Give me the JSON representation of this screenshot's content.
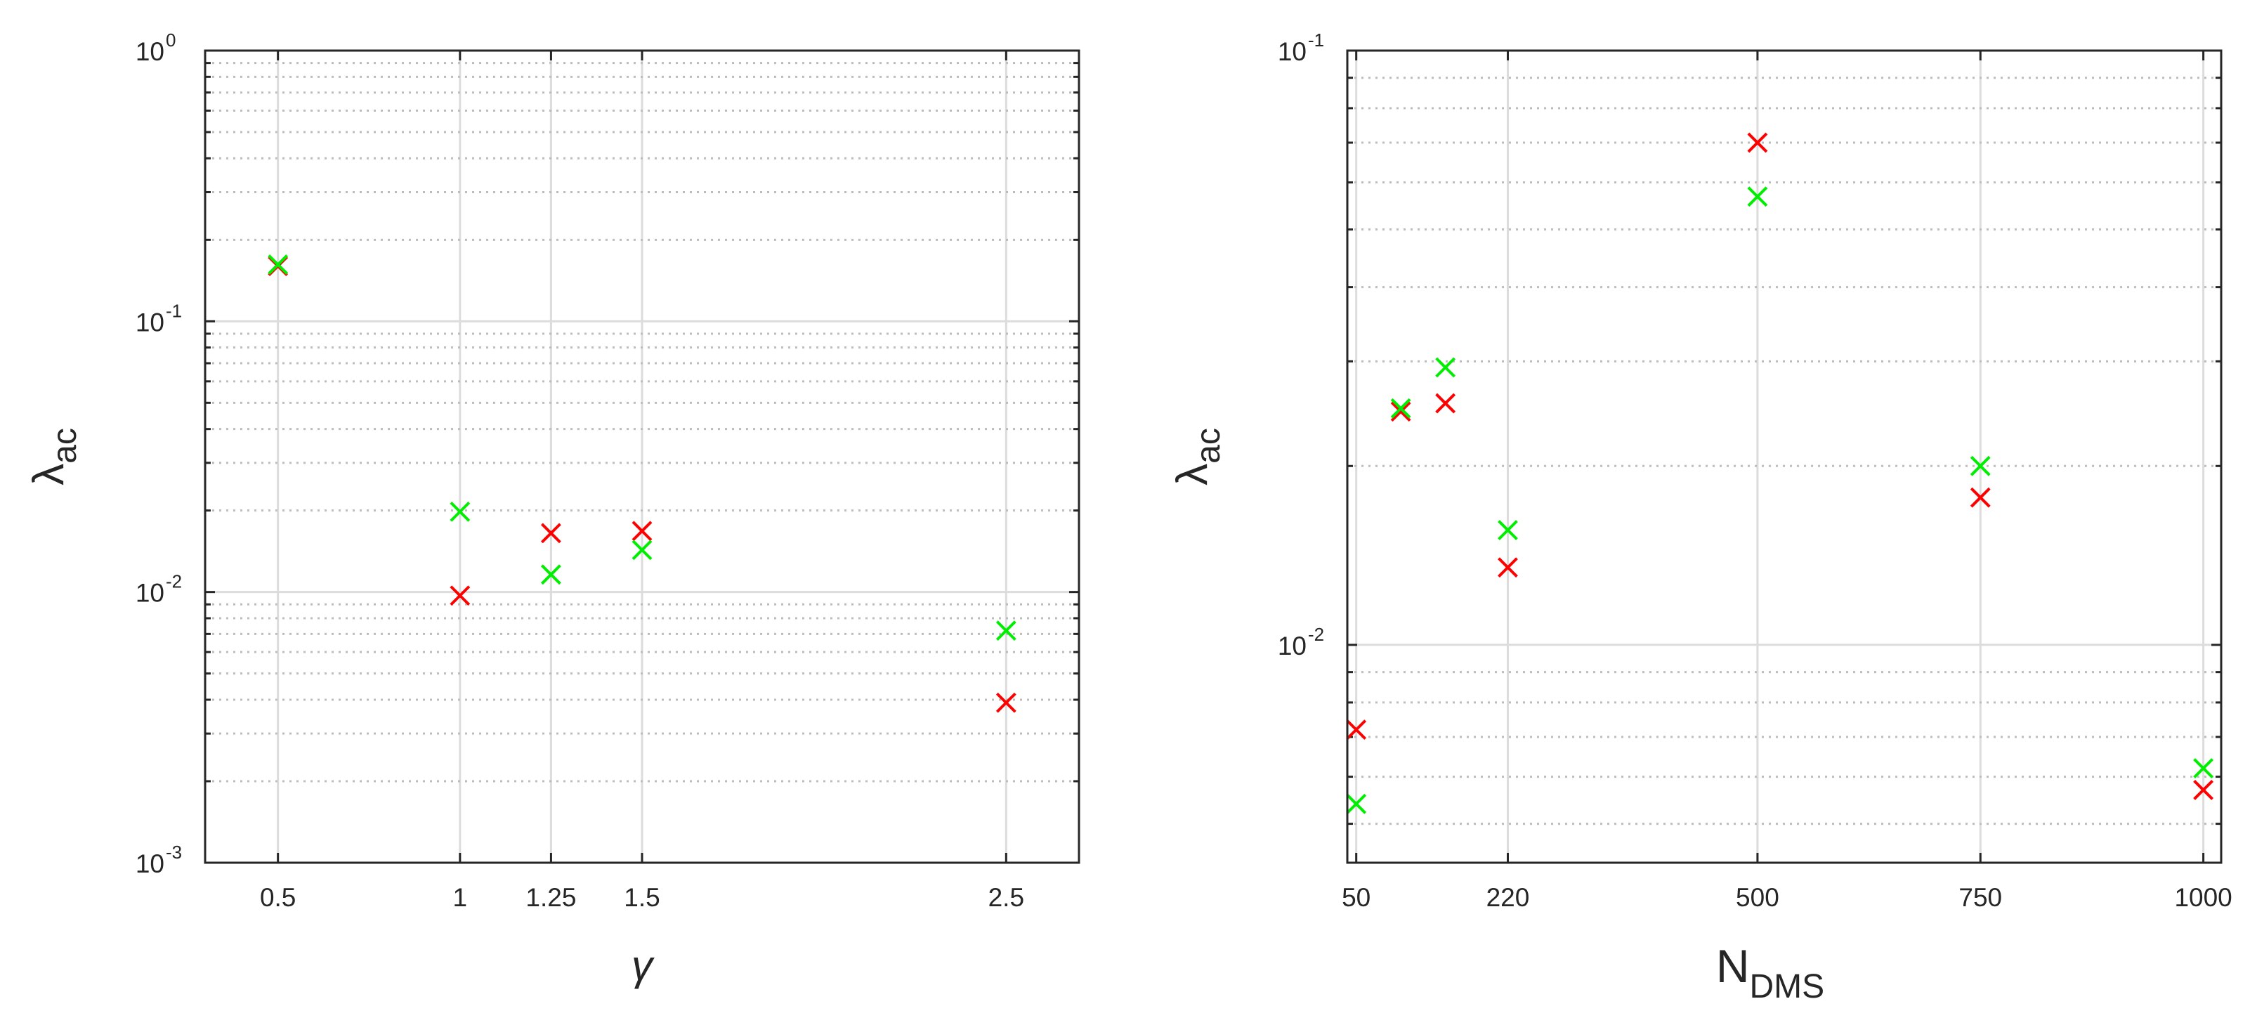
{
  "chart_data": [
    {
      "type": "scatter",
      "title": "",
      "xlabel": "γ",
      "ylabel_main": "λ",
      "ylabel_sub": "ac",
      "yscale": "log",
      "xlim": [
        0.3,
        2.7
      ],
      "ylim": [
        0.001,
        1
      ],
      "xticks": [
        0.5,
        1,
        1.25,
        1.5,
        2.5
      ],
      "xtick_labels": [
        "0.5",
        "1",
        "1.25",
        "1.5",
        "2.5"
      ],
      "ytick_labels": [
        {
          "base": "10",
          "exp": "0"
        },
        {
          "base": "10",
          "exp": "-1"
        },
        {
          "base": "10",
          "exp": "-2"
        },
        {
          "base": "10",
          "exp": "-3"
        }
      ],
      "grid": true,
      "marker": "x",
      "series": [
        {
          "color": "#ff0000",
          "points": [
            [
              0.5,
              0.16
            ],
            [
              1,
              0.0097
            ],
            [
              1.25,
              0.0165
            ],
            [
              1.5,
              0.0168
            ],
            [
              2.5,
              0.0039
            ]
          ]
        },
        {
          "color": "#00ee00",
          "points": [
            [
              0.5,
              0.162
            ],
            [
              1,
              0.0198
            ],
            [
              1.25,
              0.0116
            ],
            [
              1.5,
              0.0143
            ],
            [
              2.5,
              0.0072
            ]
          ]
        }
      ]
    },
    {
      "type": "scatter",
      "title": "",
      "xlabel_main": "N",
      "xlabel_sub": "DMS",
      "ylabel_main": "λ",
      "ylabel_sub": "ac",
      "yscale": "log",
      "xlim": [
        40,
        1020
      ],
      "ylim": [
        0.0043,
        0.1
      ],
      "xticks": [
        50,
        220,
        500,
        750,
        1000
      ],
      "xtick_labels": [
        "50",
        "220",
        "500",
        "750",
        "1000"
      ],
      "ytick_labels": [
        {
          "base": "10",
          "exp": "-1"
        },
        {
          "base": "10",
          "exp": "-2"
        }
      ],
      "grid": true,
      "marker": "x",
      "series": [
        {
          "color": "#ff0000",
          "points": [
            [
              50,
              0.0072
            ],
            [
              100,
              0.0247
            ],
            [
              150,
              0.0255
            ],
            [
              220,
              0.0135
            ],
            [
              500,
              0.07
            ],
            [
              750,
              0.0177
            ],
            [
              1000,
              0.0057
            ]
          ]
        },
        {
          "color": "#00ee00",
          "points": [
            [
              50,
              0.0054
            ],
            [
              100,
              0.025
            ],
            [
              150,
              0.0293
            ],
            [
              220,
              0.0156
            ],
            [
              500,
              0.0568
            ],
            [
              750,
              0.02
            ],
            [
              1000,
              0.0062
            ]
          ]
        }
      ]
    }
  ]
}
